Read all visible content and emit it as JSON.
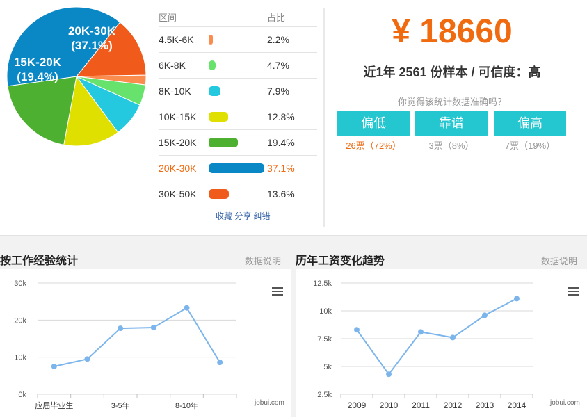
{
  "salary_distribution": {
    "header": {
      "range": "区间",
      "share": "占比"
    },
    "rows": [
      {
        "range": "4.5K-6K",
        "share": "2.2%",
        "value": 2.2,
        "color": "#fa8c4e"
      },
      {
        "range": "6K-8K",
        "share": "4.7%",
        "value": 4.7,
        "color": "#67e36d"
      },
      {
        "range": "8K-10K",
        "share": "7.9%",
        "value": 7.9,
        "color": "#24c9e0"
      },
      {
        "range": "10K-15K",
        "share": "12.8%",
        "value": 12.8,
        "color": "#dfe000"
      },
      {
        "range": "15K-20K",
        "share": "19.4%",
        "value": 19.4,
        "color": "#4db030"
      },
      {
        "range": "20K-30K",
        "share": "37.1%",
        "value": 37.1,
        "color": "#0a88c6",
        "active": true
      },
      {
        "range": "30K-50K",
        "share": "13.6%",
        "value": 13.6,
        "color": "#f05a1a"
      }
    ],
    "footer_text": "收藏 分享 纠错"
  },
  "pie_labels": [
    {
      "line1": "20K-30K",
      "line2": "(37.1%)"
    },
    {
      "line1": "15K-20K",
      "line2": "(19.4%)"
    }
  ],
  "salary_summary": {
    "amount": "¥ 18660",
    "sample_text": "近1年 2561 份样本 / 可信度：高",
    "question": "你觉得该统计数据准确吗？",
    "votes": [
      {
        "label": "偏低",
        "count_text": "26票（72%）",
        "highlight": true
      },
      {
        "label": "靠谱",
        "count_text": "3票（8%）",
        "highlight": false
      },
      {
        "label": "偏高",
        "count_text": "7票（19%）",
        "highlight": false
      }
    ]
  },
  "experience_section": {
    "title": "按工作经验统计",
    "link": "数据说明",
    "watermark": "jobui.com",
    "menu_icon": "hamburger-menu-icon"
  },
  "trend_section": {
    "title": "历年工资变化趋势",
    "link": "数据说明",
    "watermark": "jobui.com",
    "menu_icon": "hamburger-menu-icon"
  },
  "chart_data": [
    {
      "type": "line",
      "x_tick_labels": [
        "应届毕业生",
        "3-5年",
        "8-10年"
      ],
      "values": [
        7500,
        9500,
        17800,
        18000,
        23300,
        8600
      ],
      "y_ticks": [
        "0k",
        "10k",
        "20k",
        "30k"
      ],
      "ylim": [
        0,
        30000
      ],
      "grid": true,
      "color": "#7cb5ec"
    },
    {
      "type": "line",
      "categories": [
        "2009",
        "2010",
        "2011",
        "2012",
        "2013",
        "2014"
      ],
      "values": [
        8300,
        4300,
        8100,
        7600,
        9600,
        11100
      ],
      "y_ticks": [
        "2.5k",
        "5k",
        "7.5k",
        "10k",
        "12.5k"
      ],
      "ylim": [
        2500,
        12500
      ],
      "grid": true,
      "color": "#7cb5ec"
    }
  ]
}
